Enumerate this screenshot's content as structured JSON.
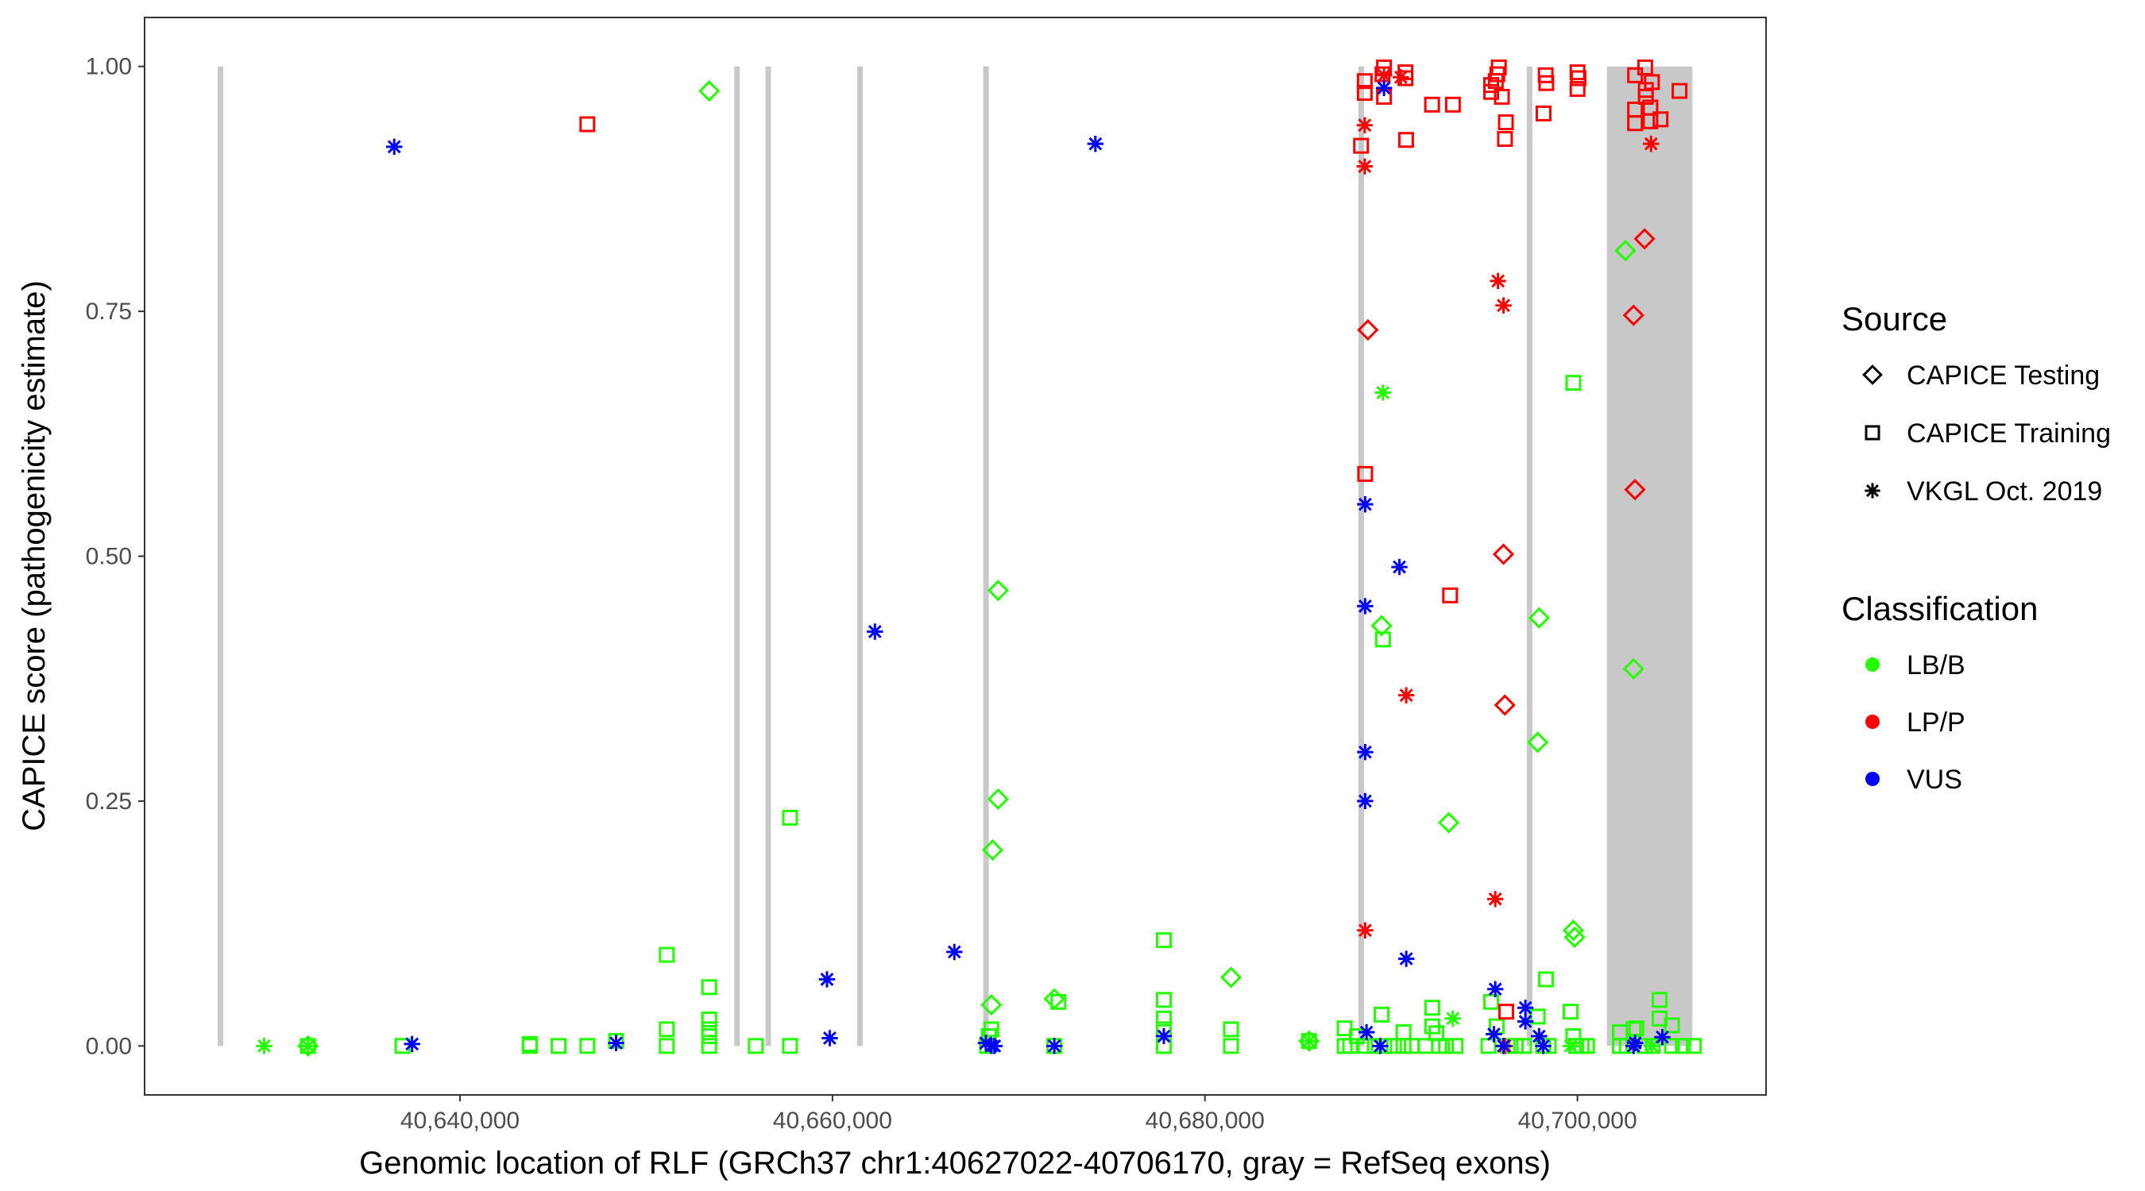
{
  "chart_data": {
    "type": "scatter",
    "title": "",
    "xlabel": "Genomic location of RLF (GRCh37 chr1:40627022-40706170, gray = RefSeq exons)",
    "ylabel": "CAPICE score (pathogenicity estimate)",
    "xlim": [
      40623065,
      40710127
    ],
    "ylim": [
      -0.05,
      1.05
    ],
    "x_ticks": [
      {
        "value": 40640000,
        "label": "40,640,000"
      },
      {
        "value": 40660000,
        "label": "40,660,000"
      },
      {
        "value": 40680000,
        "label": "40,680,000"
      },
      {
        "value": 40700000,
        "label": "40,700,000"
      }
    ],
    "y_ticks": [
      {
        "value": 0,
        "label": "0.00"
      },
      {
        "value": 0.25,
        "label": "0.25"
      },
      {
        "value": 0.5,
        "label": "0.50"
      },
      {
        "value": 0.75,
        "label": "0.75"
      },
      {
        "value": 1.0,
        "label": "1.00"
      }
    ],
    "grid": false,
    "exon_color": "#c8c8c8",
    "exons": [
      [
        40627022,
        40627250
      ],
      [
        40654800,
        40654950
      ],
      [
        40656480,
        40656620
      ],
      [
        40661400,
        40661550
      ],
      [
        40668170,
        40668320
      ],
      [
        40688320,
        40688460
      ],
      [
        40697360,
        40697500
      ],
      [
        40701584,
        40706170
      ]
    ],
    "legend": {
      "placement": "right",
      "source": {
        "title": "Source",
        "items": [
          {
            "label": "CAPICE Testing",
            "shape": "diamond"
          },
          {
            "label": "CAPICE Training",
            "shape": "square"
          },
          {
            "label": "VKGL Oct. 2019",
            "shape": "asterisk"
          }
        ]
      },
      "classification": {
        "title": "Classification",
        "items": [
          {
            "label": "LB/B",
            "color": "#22ff00"
          },
          {
            "label": "LP/P",
            "color": "#ff0000"
          },
          {
            "label": "VUS",
            "color": "#0000ff"
          }
        ]
      }
    },
    "series": [
      {
        "source": "CAPICE Testing",
        "classification": "LB/B",
        "points": [
          [
            40653382,
            0.975
          ],
          [
            40668530,
            0.042
          ],
          [
            40668600,
            0.2
          ],
          [
            40668897,
            0.252
          ],
          [
            40668897,
            0.465
          ],
          [
            40671912,
            0.048
          ],
          [
            40681397,
            0.07
          ],
          [
            40689485,
            0.429
          ],
          [
            40693088,
            0.228
          ],
          [
            40697941,
            0.437
          ],
          [
            40697868,
            0.31
          ],
          [
            40699780,
            0.118
          ],
          [
            40699850,
            0.111
          ],
          [
            40702574,
            0.812
          ],
          [
            40703015,
            0.385
          ],
          [
            40685589,
            0.005
          ],
          [
            40631838,
            0.0
          ]
        ]
      },
      {
        "source": "CAPICE Training",
        "classification": "LB/B",
        "points": [
          [
            40631838,
            0
          ],
          [
            40636912,
            0
          ],
          [
            40643750,
            0
          ],
          [
            40643750,
            0.002
          ],
          [
            40645294,
            0
          ],
          [
            40646838,
            0
          ],
          [
            40648382,
            0.005
          ],
          [
            40651103,
            0.093
          ],
          [
            40651103,
            0.017
          ],
          [
            40651103,
            0
          ],
          [
            40653382,
            0.06
          ],
          [
            40653382,
            0.027
          ],
          [
            40653382,
            0.017
          ],
          [
            40653382,
            0.01
          ],
          [
            40653382,
            0
          ],
          [
            40655882,
            0
          ],
          [
            40657721,
            0.233
          ],
          [
            40657721,
            0
          ],
          [
            40668530,
            0.017
          ],
          [
            40668400,
            0.01
          ],
          [
            40668300,
            0
          ],
          [
            40672133,
            0.045
          ],
          [
            40671912,
            0
          ],
          [
            40677794,
            0.108
          ],
          [
            40677794,
            0.047
          ],
          [
            40677794,
            0.028
          ],
          [
            40677794,
            0.017
          ],
          [
            40677794,
            0
          ],
          [
            40681397,
            0.017
          ],
          [
            40681397,
            0
          ],
          [
            40685589,
            0.005
          ],
          [
            40687500,
            0.018
          ],
          [
            40687500,
            0
          ],
          [
            40689559,
            0.415
          ],
          [
            40699780,
            0.677
          ],
          [
            40698309,
            0.068
          ],
          [
            40692206,
            0.039
          ],
          [
            40695368,
            0.045
          ],
          [
            40689485,
            0.032
          ],
          [
            40687795,
            0
          ],
          [
            40688162,
            0.01
          ],
          [
            40688603,
            0
          ],
          [
            40689118,
            0
          ],
          [
            40689633,
            0
          ],
          [
            40690147,
            0
          ],
          [
            40690662,
            0.014
          ],
          [
            40690662,
            0
          ],
          [
            40691103,
            0
          ],
          [
            40691839,
            0
          ],
          [
            40692206,
            0.02
          ],
          [
            40692427,
            0.013
          ],
          [
            40692574,
            0
          ],
          [
            40692942,
            0
          ],
          [
            40693456,
            0
          ],
          [
            40695221,
            0
          ],
          [
            40695662,
            0.02
          ],
          [
            40696250,
            0
          ],
          [
            40696692,
            0
          ],
          [
            40697133,
            0
          ],
          [
            40697868,
            0.03
          ],
          [
            40698162,
            0
          ],
          [
            40698456,
            0
          ],
          [
            40699633,
            0.035
          ],
          [
            40699780,
            0.01
          ],
          [
            40699927,
            0
          ],
          [
            40700221,
            0
          ],
          [
            40700515,
            0
          ],
          [
            40702280,
            0.014
          ],
          [
            40702280,
            0
          ],
          [
            40702648,
            0
          ],
          [
            40703015,
            0.017
          ],
          [
            40703162,
            0.018
          ],
          [
            40703603,
            0
          ],
          [
            40704045,
            0
          ],
          [
            40704412,
            0.047
          ],
          [
            40704412,
            0.028
          ],
          [
            40705074,
            0.021
          ],
          [
            40705074,
            0
          ],
          [
            40705662,
            0
          ],
          [
            40706251,
            0
          ]
        ]
      },
      {
        "source": "VKGL Oct. 2019",
        "classification": "LB/B",
        "points": [
          [
            40629485,
            0
          ],
          [
            40631838,
            0
          ],
          [
            40689559,
            0.667
          ],
          [
            40693309,
            0.028
          ],
          [
            40685589,
            0.005
          ],
          [
            40699633,
            0.0
          ],
          [
            40704000,
            0.0
          ]
        ]
      },
      {
        "source": "CAPICE Testing",
        "classification": "LP/P",
        "points": [
          [
            40688750,
            0.731
          ],
          [
            40696029,
            0.502
          ],
          [
            40696103,
            0.348
          ],
          [
            40703603,
            0.824
          ],
          [
            40703015,
            0.746
          ],
          [
            40703088,
            0.568
          ]
        ]
      },
      {
        "source": "CAPICE Training",
        "classification": "LP/P",
        "points": [
          [
            40646838,
            0.941
          ],
          [
            40688580,
            0.985
          ],
          [
            40688580,
            0.973
          ],
          [
            40689615,
            0.999
          ],
          [
            40689533,
            0.992
          ],
          [
            40689615,
            0.969
          ],
          [
            40690766,
            0.994
          ],
          [
            40690766,
            0.988
          ],
          [
            40692196,
            0.961
          ],
          [
            40693314,
            0.961
          ],
          [
            40688382,
            0.919
          ],
          [
            40690799,
            0.925
          ],
          [
            40695780,
            0.999
          ],
          [
            40695698,
            0.992
          ],
          [
            40695616,
            0.985
          ],
          [
            40695369,
            0.981
          ],
          [
            40695369,
            0.974
          ],
          [
            40695944,
            0.969
          ],
          [
            40696158,
            0.943
          ],
          [
            40696109,
            0.926
          ],
          [
            40698295,
            0.991
          ],
          [
            40698328,
            0.983
          ],
          [
            40698180,
            0.952
          ],
          [
            40700005,
            0.994
          ],
          [
            40700054,
            0.988
          ],
          [
            40700005,
            0.977
          ],
          [
            40703638,
            0.999
          ],
          [
            40703095,
            0.991
          ],
          [
            40703999,
            0.984
          ],
          [
            40703671,
            0.976
          ],
          [
            40703671,
            0.969
          ],
          [
            40703095,
            0.956
          ],
          [
            40703918,
            0.958
          ],
          [
            40703095,
            0.942
          ],
          [
            40703918,
            0.944
          ],
          [
            40704460,
            0.946
          ],
          [
            40705480,
            0.975
          ],
          [
            40688603,
            0.584
          ],
          [
            40693162,
            0.46
          ],
          [
            40696176,
            0.035
          ]
        ]
      },
      {
        "source": "VKGL Oct. 2019",
        "classification": "LP/P",
        "points": [
          [
            40689615,
            0.991
          ],
          [
            40690519,
            0.989
          ],
          [
            40688580,
            0.94
          ],
          [
            40688580,
            0.898
          ],
          [
            40695735,
            0.781
          ],
          [
            40696029,
            0.756
          ],
          [
            40690809,
            0.358
          ],
          [
            40688603,
            0.118
          ],
          [
            40695588,
            0.15
          ],
          [
            40703951,
            0.921
          ],
          [
            40695515,
            0.012
          ],
          [
            40696100,
            0.0
          ]
        ]
      },
      {
        "source": "VKGL Oct. 2019",
        "classification": "VUS",
        "points": [
          [
            40636470,
            0.918
          ],
          [
            40637426,
            0.002
          ],
          [
            40648382,
            0.003
          ],
          [
            40659706,
            0.068
          ],
          [
            40659853,
            0.008
          ],
          [
            40662279,
            0.423
          ],
          [
            40666544,
            0.096
          ],
          [
            40668235,
            0.003
          ],
          [
            40668530,
            0
          ],
          [
            40668700,
            0
          ],
          [
            40671912,
            0
          ],
          [
            40677794,
            0.01
          ],
          [
            40674118,
            0.921
          ],
          [
            40689615,
            0.978
          ],
          [
            40688603,
            0.553
          ],
          [
            40690441,
            0.489
          ],
          [
            40688603,
            0.449
          ],
          [
            40688603,
            0.3
          ],
          [
            40688603,
            0.25
          ],
          [
            40690809,
            0.089
          ],
          [
            40695588,
            0.058
          ],
          [
            40697206,
            0.039
          ],
          [
            40697206,
            0.025
          ],
          [
            40688677,
            0.014
          ],
          [
            40689412,
            0
          ],
          [
            40695515,
            0.012
          ],
          [
            40696030,
            0
          ],
          [
            40697942,
            0.01
          ],
          [
            40698162,
            0
          ],
          [
            40703015,
            0
          ],
          [
            40703100,
            0.003
          ],
          [
            40704559,
            0.009
          ]
        ]
      }
    ]
  }
}
